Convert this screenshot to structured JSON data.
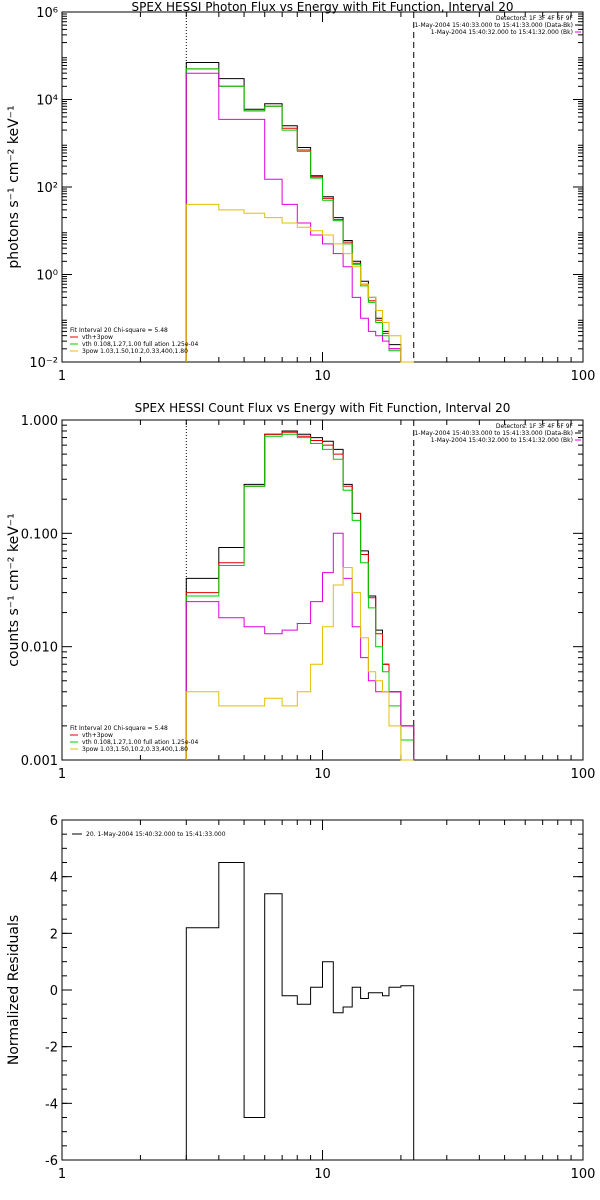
{
  "chart_data": [
    {
      "type": "line",
      "title": "SPEX HESSI Photon Flux vs Energy with Fit Function, Interval 20",
      "ylabel": "photons s⁻¹ cm⁻² keV⁻¹",
      "xlabel": "",
      "x_scale": "log",
      "y_scale": "log",
      "xlim": [
        1,
        100
      ],
      "ylim": [
        0.01,
        1000000
      ],
      "x_ticks": [
        1,
        10,
        100
      ],
      "x_tick_labels": [
        "1",
        "10",
        "100"
      ],
      "y_ticks": [
        0.01,
        1,
        100,
        10000,
        1000000
      ],
      "y_tick_labels": [
        "10⁻²",
        "10⁰",
        "10²",
        "10⁴",
        "10⁶"
      ],
      "vlines": [
        {
          "x": 3.0,
          "style": "dotted"
        },
        {
          "x": 22.4,
          "style": "dashed"
        }
      ],
      "legend_top": [
        "Detectors: 1F 3F 4F 6F 9F",
        "1-May-2004 15:40:33.000 to 15:41:33.000 (Data-Bk)",
        "1-May-2004 15:40:32.000 to 15:41:32.000 (Bk)"
      ],
      "legend_bottom": [
        "Fit Interval 20   Chi-square = 5.48",
        "vth+3pow",
        "vth 0.108,1.27,1.00  full ation 1.25e-04",
        "3pow 1.03,1.50,10.2,0.33,400,1.80"
      ],
      "bin_edges": [
        3.0,
        4.0,
        5.0,
        6.0,
        7.0,
        8.0,
        9.0,
        10.0,
        11.0,
        12.0,
        13.0,
        14.0,
        15.0,
        16.0,
        17.0,
        18.0,
        20.0,
        22.4
      ],
      "series": [
        {
          "name": "Data-Bk",
          "color": "#000000",
          "values": [
            70000,
            30000,
            6000,
            8000,
            2500,
            800,
            180,
            60,
            20,
            6,
            2,
            0.7,
            0.3,
            0.1,
            0.05,
            0.025,
            0.01
          ]
        },
        {
          "name": "vth+3pow",
          "color": "#e00000",
          "values": [
            50000,
            20000,
            5500,
            7000,
            2200,
            700,
            170,
            55,
            18,
            5.5,
            1.8,
            0.6,
            0.25,
            0.09,
            0.045,
            0.02,
            0.01
          ]
        },
        {
          "name": "vth",
          "color": "#00cc00",
          "values": [
            50000,
            20000,
            5500,
            7000,
            2000,
            650,
            160,
            50,
            17,
            5.0,
            1.7,
            0.55,
            0.23,
            0.08,
            0.04,
            0.018,
            0.009
          ]
        },
        {
          "name": "",
          "color": "#e000e0",
          "values": [
            40000,
            3500,
            3500,
            150,
            40,
            15,
            8,
            5,
            3,
            1.5,
            0.3,
            0.1,
            0.05,
            0.04,
            0.03,
            0.02,
            0.01
          ]
        },
        {
          "name": "3pow",
          "color": "#e0c000",
          "values": [
            40,
            30,
            25,
            20,
            15,
            12,
            10,
            8,
            5,
            3,
            1.5,
            0.6,
            0.3,
            0.15,
            0.08,
            0.04,
            0.01
          ]
        }
      ]
    },
    {
      "type": "line",
      "title": "SPEX HESSI Count Flux vs Energy with Fit Function, Interval 20",
      "ylabel": "counts s⁻¹ cm⁻² keV⁻¹",
      "xlabel": "",
      "x_scale": "log",
      "y_scale": "log",
      "xlim": [
        1,
        100
      ],
      "ylim": [
        0.001,
        1.0
      ],
      "x_ticks": [
        1,
        10,
        100
      ],
      "x_tick_labels": [
        "1",
        "10",
        "100"
      ],
      "y_ticks": [
        0.001,
        0.01,
        0.1,
        1.0
      ],
      "y_tick_labels": [
        "0.001",
        "0.010",
        "0.100",
        "1.000"
      ],
      "vlines": [
        {
          "x": 3.0,
          "style": "dotted"
        },
        {
          "x": 22.4,
          "style": "dashed"
        }
      ],
      "legend_top": [
        "Detectors: 1F 3F 4F 6F 9F",
        "1-May-2004 15:40:33.000 to 15:41:33.000 (Data-Bk)",
        "1-May-2004 15:40:32.000 to 15:41:32.000 (Bk)"
      ],
      "legend_bottom": [
        "Fit Interval 20   Chi-square = 5.48",
        "vth+3pow",
        "vth 0.108,1.27,1.00  full ation 1.25e-04",
        "3pow 1.03,1.50,10.2,0.33,400,1.80"
      ],
      "bin_edges": [
        3.0,
        4.0,
        5.0,
        6.0,
        7.0,
        8.0,
        9.0,
        10.0,
        11.0,
        12.0,
        13.0,
        14.0,
        15.0,
        16.0,
        17.0,
        18.0,
        20.0,
        22.4
      ],
      "series": [
        {
          "name": "Data-Bk",
          "color": "#000000",
          "values": [
            0.04,
            0.075,
            0.27,
            0.75,
            0.8,
            0.75,
            0.7,
            0.65,
            0.55,
            0.27,
            0.15,
            0.07,
            0.028,
            0.014,
            0.007,
            0.004,
            0.002
          ]
        },
        {
          "name": "vth+3pow",
          "color": "#e00000",
          "values": [
            0.03,
            0.055,
            0.26,
            0.75,
            0.78,
            0.72,
            0.66,
            0.6,
            0.5,
            0.26,
            0.15,
            0.065,
            0.027,
            0.013,
            0.007,
            0.004,
            0.002
          ]
        },
        {
          "name": "vth",
          "color": "#00cc00",
          "values": [
            0.028,
            0.052,
            0.26,
            0.72,
            0.75,
            0.7,
            0.62,
            0.55,
            0.45,
            0.24,
            0.13,
            0.055,
            0.022,
            0.01,
            0.006,
            0.003,
            0.0015
          ]
        },
        {
          "name": "",
          "color": "#e000e0",
          "values": [
            0.025,
            0.018,
            0.015,
            0.013,
            0.014,
            0.016,
            0.025,
            0.045,
            0.1,
            0.04,
            0.015,
            0.008,
            0.005,
            0.004,
            0.004,
            0.004,
            0.002
          ]
        },
        {
          "name": "3pow",
          "color": "#e0c000",
          "values": [
            0.004,
            0.003,
            0.003,
            0.0035,
            0.003,
            0.004,
            0.007,
            0.015,
            0.035,
            0.05,
            0.03,
            0.012,
            0.006,
            0.005,
            0.004,
            0.002,
            0.001
          ]
        }
      ]
    },
    {
      "type": "line",
      "title": "",
      "ylabel": "Normalized Residuals",
      "xlabel": "",
      "x_scale": "log",
      "y_scale": "linear",
      "xlim": [
        1,
        100
      ],
      "ylim": [
        -6,
        6
      ],
      "x_ticks": [
        1,
        10,
        100
      ],
      "x_tick_labels": [
        "1",
        "10",
        "100"
      ],
      "y_ticks": [
        -6,
        -4,
        -2,
        0,
        2,
        4,
        6
      ],
      "y_tick_labels": [
        "-6",
        "-4",
        "-2",
        "0",
        "2",
        "4",
        "6"
      ],
      "legend": [
        "20.  1-May-2004 15:40:32.000 to 15:41:33.000"
      ],
      "bin_edges": [
        3.0,
        4.0,
        5.0,
        6.0,
        7.0,
        8.0,
        9.0,
        10.0,
        11.0,
        12.0,
        13.0,
        14.0,
        15.0,
        16.0,
        17.0,
        18.0,
        20.0,
        22.4
      ],
      "series": [
        {
          "name": "20.",
          "color": "#000000",
          "values": [
            2.2,
            4.5,
            -4.5,
            3.4,
            -0.2,
            -0.5,
            0.1,
            1.0,
            -0.8,
            -0.6,
            0.1,
            -0.3,
            -0.1,
            -0.1,
            -0.2,
            0.1,
            0.15
          ]
        }
      ]
    }
  ]
}
